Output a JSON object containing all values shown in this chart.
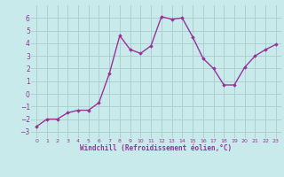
{
  "x": [
    0,
    1,
    2,
    3,
    4,
    5,
    6,
    7,
    8,
    9,
    10,
    11,
    12,
    13,
    14,
    15,
    16,
    17,
    18,
    19,
    20,
    21,
    22,
    23
  ],
  "y": [
    -2.6,
    -2.0,
    -2.0,
    -1.5,
    -1.3,
    -1.3,
    -0.7,
    1.6,
    4.6,
    3.5,
    3.2,
    3.8,
    6.1,
    5.9,
    6.0,
    4.5,
    2.8,
    2.0,
    0.7,
    0.7,
    2.1,
    3.0,
    3.5,
    3.9
  ],
  "line_color": "#993399",
  "marker": "D",
  "marker_size": 1.8,
  "bg_color": "#c8eaea",
  "grid_color": "#aacccc",
  "tick_color": "#993399",
  "xlabel": "Windchill (Refroidissement éolien,°C)",
  "xlabel_color": "#993399",
  "ylim": [
    -3.5,
    7.0
  ],
  "xlim": [
    -0.5,
    23.5
  ],
  "yticks": [
    -3,
    -2,
    -1,
    0,
    1,
    2,
    3,
    4,
    5,
    6
  ],
  "xticks": [
    0,
    1,
    2,
    3,
    4,
    5,
    6,
    7,
    8,
    9,
    10,
    11,
    12,
    13,
    14,
    15,
    16,
    17,
    18,
    19,
    20,
    21,
    22,
    23
  ],
  "line_width": 1.0
}
